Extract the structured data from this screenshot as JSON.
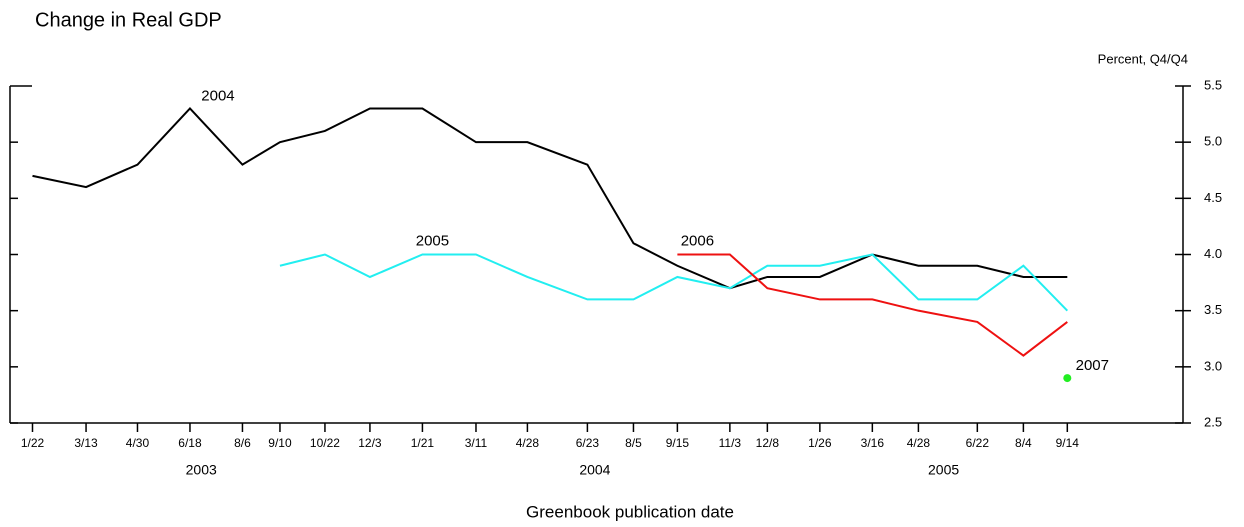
{
  "chart_data": {
    "type": "line",
    "title": "Change in Real GDP",
    "y_axis_label": "Percent, Q4/Q4",
    "x_axis_label": "Greenbook publication date",
    "x": [
      "2003-01-22",
      "2003-03-13",
      "2003-04-30",
      "2003-06-18",
      "2003-08-06",
      "2003-09-10",
      "2003-10-22",
      "2003-12-03",
      "2004-01-21",
      "2004-03-11",
      "2004-04-28",
      "2004-06-23",
      "2004-08-05",
      "2004-09-15",
      "2004-11-03",
      "2004-12-08",
      "2005-01-26",
      "2005-03-16",
      "2005-04-28",
      "2005-06-22",
      "2005-08-04",
      "2005-09-14"
    ],
    "xlim": [
      "2003-01-01",
      "2005-12-31"
    ],
    "xticks": [
      {
        "value": "2003-01-22",
        "label": "1/22"
      },
      {
        "value": "2003-03-13",
        "label": "3/13"
      },
      {
        "value": "2003-04-30",
        "label": "4/30"
      },
      {
        "value": "2003-06-18",
        "label": "6/18"
      },
      {
        "value": "2003-08-06",
        "label": "8/6"
      },
      {
        "value": "2003-09-10",
        "label": "9/10"
      },
      {
        "value": "2003-10-22",
        "label": "10/22"
      },
      {
        "value": "2003-12-03",
        "label": "12/3"
      },
      {
        "value": "2004-01-21",
        "label": "1/21"
      },
      {
        "value": "2004-03-11",
        "label": "3/11"
      },
      {
        "value": "2004-04-28",
        "label": "4/28"
      },
      {
        "value": "2004-06-23",
        "label": "6/23"
      },
      {
        "value": "2004-08-05",
        "label": "8/5"
      },
      {
        "value": "2004-09-15",
        "label": "9/15"
      },
      {
        "value": "2004-11-03",
        "label": "11/3"
      },
      {
        "value": "2004-12-08",
        "label": "12/8"
      },
      {
        "value": "2005-01-26",
        "label": "1/26"
      },
      {
        "value": "2005-03-16",
        "label": "3/16"
      },
      {
        "value": "2005-04-28",
        "label": "4/28"
      },
      {
        "value": "2005-06-22",
        "label": "6/22"
      },
      {
        "value": "2005-08-04",
        "label": "8/4"
      },
      {
        "value": "2005-09-14",
        "label": "9/14"
      }
    ],
    "years": [
      "2003",
      "2004",
      "2005"
    ],
    "ylim": [
      2.5,
      5.5
    ],
    "yticks": [
      {
        "value": 2.5,
        "label": "2.5"
      },
      {
        "value": 3,
        "label": "3.0"
      },
      {
        "value": 3.5,
        "label": "3.5"
      },
      {
        "value": 4,
        "label": "4.0"
      },
      {
        "value": 4.5,
        "label": "4.5"
      },
      {
        "value": 5,
        "label": "5.0"
      },
      {
        "value": 5.5,
        "label": "5.5"
      }
    ],
    "series": [
      {
        "name": "2004",
        "color": "#000000",
        "values": [
          4.7,
          4.6,
          4.8,
          5.3,
          4.8,
          5.0,
          5.1,
          5.3,
          5.3,
          5.0,
          5.0,
          4.8,
          4.1,
          3.9,
          3.7,
          3.8,
          3.8,
          4.0,
          3.9,
          3.9,
          3.8,
          3.8
        ]
      },
      {
        "name": "2005",
        "color": "#22eef0",
        "values": [
          null,
          null,
          null,
          null,
          null,
          3.9,
          4.0,
          3.8,
          4.0,
          4.0,
          3.8,
          3.6,
          3.6,
          3.8,
          3.7,
          3.9,
          3.9,
          4.0,
          3.6,
          3.6,
          3.9,
          3.5
        ]
      },
      {
        "name": "2006",
        "color": "#ee1111",
        "values": [
          null,
          null,
          null,
          null,
          null,
          null,
          null,
          null,
          null,
          null,
          null,
          null,
          null,
          4.0,
          4.0,
          3.7,
          3.6,
          3.6,
          3.5,
          3.4,
          3.1,
          3.4
        ]
      },
      {
        "name": "2007",
        "color": "#22ee22",
        "values": [
          null,
          null,
          null,
          null,
          null,
          null,
          null,
          null,
          null,
          null,
          null,
          null,
          null,
          null,
          null,
          null,
          null,
          null,
          null,
          null,
          null,
          2.9
        ]
      }
    ]
  }
}
